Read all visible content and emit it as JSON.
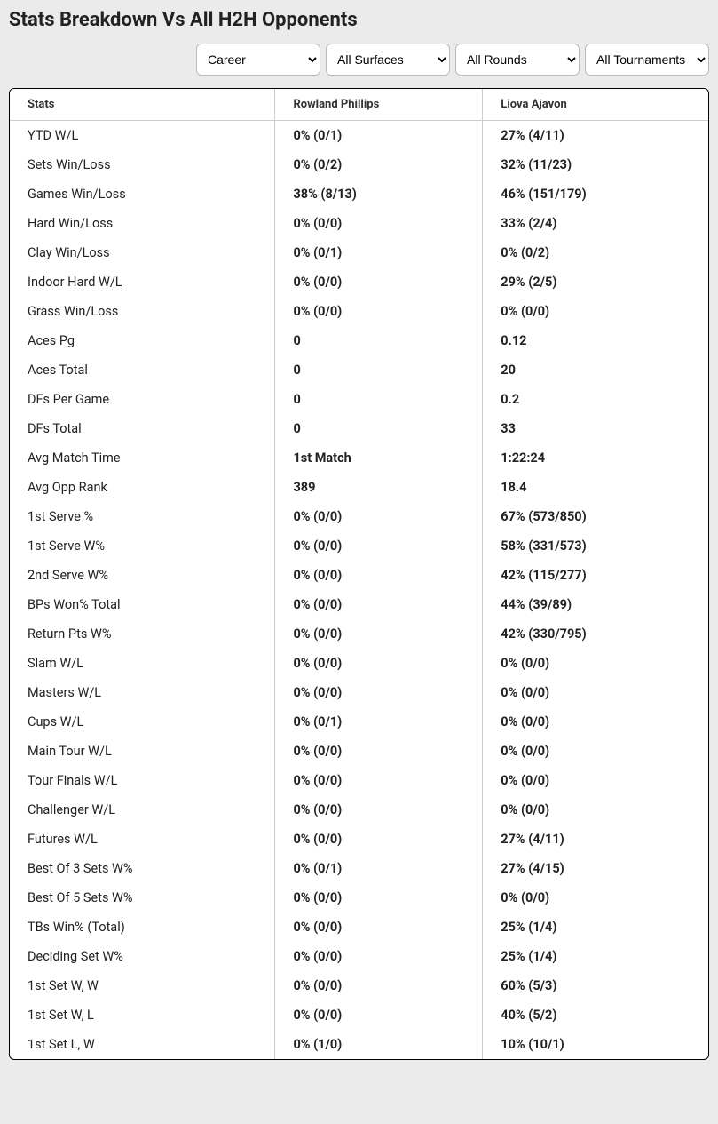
{
  "title": "Stats Breakdown Vs All H2H Opponents",
  "filters": {
    "period": {
      "selected": "Career",
      "options": [
        "Career"
      ]
    },
    "surface": {
      "selected": "All Surfaces",
      "options": [
        "All Surfaces"
      ]
    },
    "round": {
      "selected": "All Rounds",
      "options": [
        "All Rounds"
      ]
    },
    "tournament": {
      "selected": "All Tournaments",
      "options": [
        "All Tournaments"
      ]
    }
  },
  "table": {
    "columns": [
      "Stats",
      "Rowland Phillips",
      "Liova Ajavon"
    ],
    "rows": [
      {
        "label": "YTD W/L",
        "p1": "0% (0/1)",
        "p2": "27% (4/11)"
      },
      {
        "label": "Sets Win/Loss",
        "p1": "0% (0/2)",
        "p2": "32% (11/23)"
      },
      {
        "label": "Games Win/Loss",
        "p1": "38% (8/13)",
        "p2": "46% (151/179)"
      },
      {
        "label": "Hard Win/Loss",
        "p1": "0% (0/0)",
        "p2": "33% (2/4)"
      },
      {
        "label": "Clay Win/Loss",
        "p1": "0% (0/1)",
        "p2": "0% (0/2)"
      },
      {
        "label": "Indoor Hard W/L",
        "p1": "0% (0/0)",
        "p2": "29% (2/5)"
      },
      {
        "label": "Grass Win/Loss",
        "p1": "0% (0/0)",
        "p2": "0% (0/0)"
      },
      {
        "label": "Aces Pg",
        "p1": "0",
        "p2": "0.12"
      },
      {
        "label": "Aces Total",
        "p1": "0",
        "p2": "20"
      },
      {
        "label": "DFs Per Game",
        "p1": "0",
        "p2": "0.2"
      },
      {
        "label": "DFs Total",
        "p1": "0",
        "p2": "33"
      },
      {
        "label": "Avg Match Time",
        "p1": "1st Match",
        "p2": "1:22:24"
      },
      {
        "label": "Avg Opp Rank",
        "p1": "389",
        "p2": "18.4"
      },
      {
        "label": "1st Serve %",
        "p1": "0% (0/0)",
        "p2": "67% (573/850)"
      },
      {
        "label": "1st Serve W%",
        "p1": "0% (0/0)",
        "p2": "58% (331/573)"
      },
      {
        "label": "2nd Serve W%",
        "p1": "0% (0/0)",
        "p2": "42% (115/277)"
      },
      {
        "label": "BPs Won% Total",
        "p1": "0% (0/0)",
        "p2": "44% (39/89)"
      },
      {
        "label": "Return Pts W%",
        "p1": "0% (0/0)",
        "p2": "42% (330/795)"
      },
      {
        "label": "Slam W/L",
        "p1": "0% (0/0)",
        "p2": "0% (0/0)"
      },
      {
        "label": "Masters W/L",
        "p1": "0% (0/0)",
        "p2": "0% (0/0)"
      },
      {
        "label": "Cups W/L",
        "p1": "0% (0/1)",
        "p2": "0% (0/0)"
      },
      {
        "label": "Main Tour W/L",
        "p1": "0% (0/0)",
        "p2": "0% (0/0)"
      },
      {
        "label": "Tour Finals W/L",
        "p1": "0% (0/0)",
        "p2": "0% (0/0)"
      },
      {
        "label": "Challenger W/L",
        "p1": "0% (0/0)",
        "p2": "0% (0/0)"
      },
      {
        "label": "Futures W/L",
        "p1": "0% (0/0)",
        "p2": "27% (4/11)"
      },
      {
        "label": "Best Of 3 Sets W%",
        "p1": "0% (0/1)",
        "p2": "27% (4/15)"
      },
      {
        "label": "Best Of 5 Sets W%",
        "p1": "0% (0/0)",
        "p2": "0% (0/0)"
      },
      {
        "label": "TBs Win% (Total)",
        "p1": "0% (0/0)",
        "p2": "25% (1/4)"
      },
      {
        "label": "Deciding Set W%",
        "p1": "0% (0/0)",
        "p2": "25% (1/4)"
      },
      {
        "label": "1st Set W, W",
        "p1": "0% (0/0)",
        "p2": "60% (5/3)"
      },
      {
        "label": "1st Set W, L",
        "p1": "0% (0/0)",
        "p2": "40% (5/2)"
      },
      {
        "label": "1st Set L, W",
        "p1": "0% (1/0)",
        "p2": "10% (10/1)"
      }
    ]
  },
  "colors": {
    "page_bg": "#ebebeb",
    "table_border": "#000000",
    "cell_border": "#cccccc",
    "text": "#222222"
  }
}
